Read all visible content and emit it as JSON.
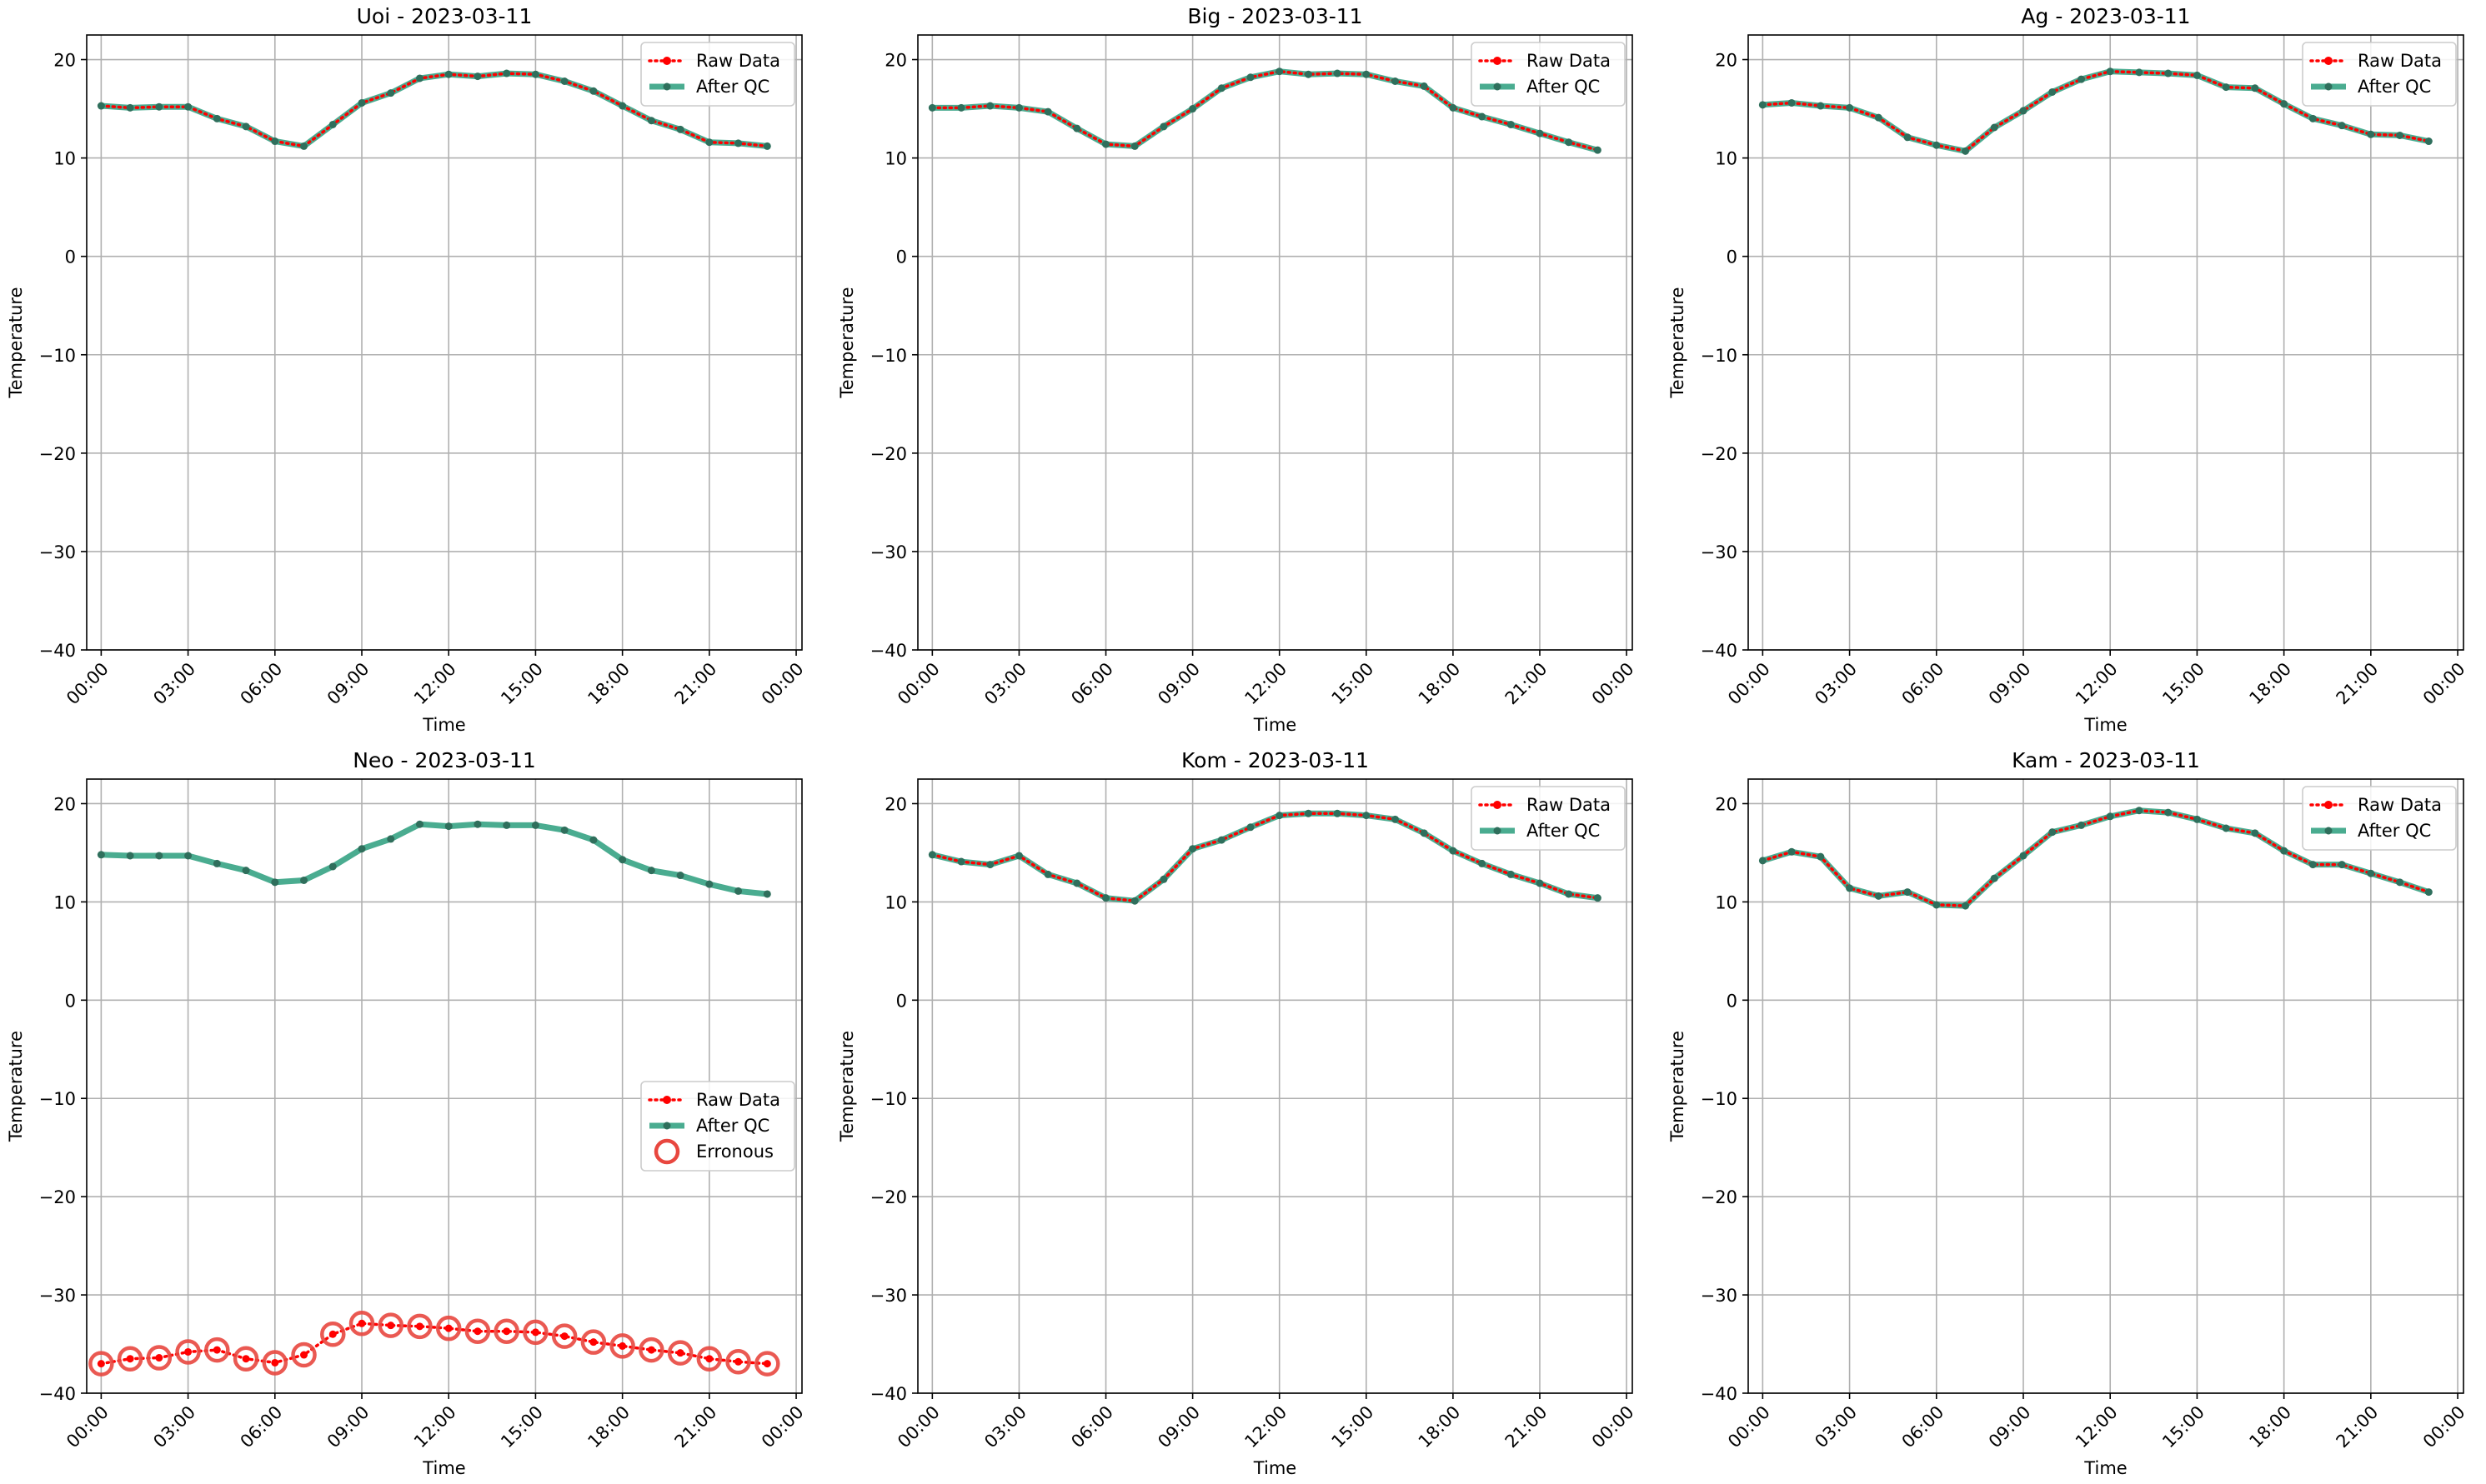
{
  "figure": {
    "layout": "2x3 grid of line charts",
    "colors": {
      "raw": "#ff0000",
      "qc": "#2a9d7c",
      "qc_marker": "#2f6f5c",
      "erroneous": "#e8473f",
      "grid": "#b0b0b0",
      "axis": "#000000"
    }
  },
  "chart_data": [
    {
      "type": "line",
      "title": "Uoi - 2023-03-11",
      "xlabel": "Time",
      "ylabel": "Temperature",
      "x_hours": [
        0,
        1,
        2,
        3,
        4,
        5,
        6,
        7,
        8,
        9,
        10,
        11,
        12,
        13,
        14,
        15,
        16,
        17,
        18,
        19,
        20,
        21,
        22,
        23
      ],
      "xlim_hours": [
        -0.5,
        24.2
      ],
      "xticks": [
        "00:00",
        "03:00",
        "06:00",
        "09:00",
        "12:00",
        "15:00",
        "18:00",
        "21:00",
        "00:00"
      ],
      "xtick_hours": [
        0,
        3,
        6,
        9,
        12,
        15,
        18,
        21,
        24
      ],
      "ylim": [
        -40,
        22.5
      ],
      "yticks": [
        20,
        10,
        0,
        -10,
        -20,
        -30,
        -40
      ],
      "ytick_labels": [
        "20",
        "10",
        "0",
        "−10",
        "−20",
        "−30",
        "−40"
      ],
      "grid": true,
      "legend_position": "upper-right",
      "legend": [
        "Raw Data",
        "After QC"
      ],
      "series": [
        {
          "name": "Raw Data",
          "style": "dotted-red-dots",
          "values": [
            15.3,
            15.1,
            15.2,
            15.2,
            14.0,
            13.2,
            11.7,
            11.2,
            13.4,
            15.6,
            16.6,
            18.1,
            18.5,
            18.3,
            18.6,
            18.5,
            17.8,
            16.8,
            15.3,
            13.8,
            12.9,
            11.6,
            11.5,
            11.2
          ]
        },
        {
          "name": "After QC",
          "style": "solid-green",
          "values": [
            15.3,
            15.1,
            15.2,
            15.2,
            14.0,
            13.2,
            11.7,
            11.2,
            13.4,
            15.6,
            16.6,
            18.1,
            18.5,
            18.3,
            18.6,
            18.5,
            17.8,
            16.8,
            15.3,
            13.8,
            12.9,
            11.6,
            11.5,
            11.2
          ]
        }
      ]
    },
    {
      "type": "line",
      "title": "Big - 2023-03-11",
      "xlabel": "Time",
      "ylabel": "Temperature",
      "x_hours": [
        0,
        1,
        2,
        3,
        4,
        5,
        6,
        7,
        8,
        9,
        10,
        11,
        12,
        13,
        14,
        15,
        16,
        17,
        18,
        19,
        20,
        21,
        22,
        23
      ],
      "xlim_hours": [
        -0.5,
        24.2
      ],
      "xticks": [
        "00:00",
        "03:00",
        "06:00",
        "09:00",
        "12:00",
        "15:00",
        "18:00",
        "21:00",
        "00:00"
      ],
      "xtick_hours": [
        0,
        3,
        6,
        9,
        12,
        15,
        18,
        21,
        24
      ],
      "ylim": [
        -40,
        22.5
      ],
      "yticks": [
        20,
        10,
        0,
        -10,
        -20,
        -30,
        -40
      ],
      "ytick_labels": [
        "20",
        "10",
        "0",
        "−10",
        "−20",
        "−30",
        "−40"
      ],
      "grid": true,
      "legend_position": "upper-right",
      "legend": [
        "Raw Data",
        "After QC"
      ],
      "series": [
        {
          "name": "Raw Data",
          "style": "dotted-red-dots",
          "values": [
            15.1,
            15.1,
            15.3,
            15.1,
            14.7,
            13.0,
            11.4,
            11.2,
            13.2,
            15.0,
            17.1,
            18.2,
            18.8,
            18.5,
            18.6,
            18.5,
            17.8,
            17.3,
            15.1,
            14.2,
            13.4,
            12.5,
            11.6,
            10.8
          ]
        },
        {
          "name": "After QC",
          "style": "solid-green",
          "values": [
            15.1,
            15.1,
            15.3,
            15.1,
            14.7,
            13.0,
            11.4,
            11.2,
            13.2,
            15.0,
            17.1,
            18.2,
            18.8,
            18.5,
            18.6,
            18.5,
            17.8,
            17.3,
            15.1,
            14.2,
            13.4,
            12.5,
            11.6,
            10.8
          ]
        }
      ]
    },
    {
      "type": "line",
      "title": "Ag - 2023-03-11",
      "xlabel": "Time",
      "ylabel": "Temperature",
      "x_hours": [
        0,
        1,
        2,
        3,
        4,
        5,
        6,
        7,
        8,
        9,
        10,
        11,
        12,
        13,
        14,
        15,
        16,
        17,
        18,
        19,
        20,
        21,
        22,
        23
      ],
      "xlim_hours": [
        -0.5,
        24.2
      ],
      "xticks": [
        "00:00",
        "03:00",
        "06:00",
        "09:00",
        "12:00",
        "15:00",
        "18:00",
        "21:00",
        "00:00"
      ],
      "xtick_hours": [
        0,
        3,
        6,
        9,
        12,
        15,
        18,
        21,
        24
      ],
      "ylim": [
        -40,
        22.5
      ],
      "yticks": [
        20,
        10,
        0,
        -10,
        -20,
        -30,
        -40
      ],
      "ytick_labels": [
        "20",
        "10",
        "0",
        "−10",
        "−20",
        "−30",
        "−40"
      ],
      "grid": true,
      "legend_position": "upper-right",
      "legend": [
        "Raw Data",
        "After QC"
      ],
      "series": [
        {
          "name": "Raw Data",
          "style": "dotted-red-dots",
          "values": [
            15.4,
            15.6,
            15.3,
            15.1,
            14.1,
            12.1,
            11.3,
            10.7,
            13.1,
            14.8,
            16.7,
            18.0,
            18.8,
            18.7,
            18.6,
            18.4,
            17.2,
            17.1,
            15.5,
            14.0,
            13.3,
            12.4,
            12.3,
            11.7
          ]
        },
        {
          "name": "After QC",
          "style": "solid-green",
          "values": [
            15.4,
            15.6,
            15.3,
            15.1,
            14.1,
            12.1,
            11.3,
            10.7,
            13.1,
            14.8,
            16.7,
            18.0,
            18.8,
            18.7,
            18.6,
            18.4,
            17.2,
            17.1,
            15.5,
            14.0,
            13.3,
            12.4,
            12.3,
            11.7
          ]
        }
      ]
    },
    {
      "type": "line",
      "title": "Neo - 2023-03-11",
      "xlabel": "Time",
      "ylabel": "Temperature",
      "x_hours": [
        0,
        1,
        2,
        3,
        4,
        5,
        6,
        7,
        8,
        9,
        10,
        11,
        12,
        13,
        14,
        15,
        16,
        17,
        18,
        19,
        20,
        21,
        22,
        23
      ],
      "xlim_hours": [
        -0.5,
        24.2
      ],
      "xticks": [
        "00:00",
        "03:00",
        "06:00",
        "09:00",
        "12:00",
        "15:00",
        "18:00",
        "21:00",
        "00:00"
      ],
      "xtick_hours": [
        0,
        3,
        6,
        9,
        12,
        15,
        18,
        21,
        24
      ],
      "ylim": [
        -40,
        22.5
      ],
      "yticks": [
        20,
        10,
        0,
        -10,
        -20,
        -30,
        -40
      ],
      "ytick_labels": [
        "20",
        "10",
        "0",
        "−10",
        "−20",
        "−30",
        "−40"
      ],
      "grid": true,
      "legend_position": "center-right",
      "legend": [
        "Raw Data",
        "After QC",
        "Erronous"
      ],
      "series": [
        {
          "name": "Raw Data",
          "style": "dotted-red-dots",
          "values": [
            -37.0,
            -36.5,
            -36.4,
            -35.8,
            -35.6,
            -36.5,
            -36.9,
            -36.1,
            -34.0,
            -32.9,
            -33.1,
            -33.2,
            -33.4,
            -33.7,
            -33.7,
            -33.8,
            -34.2,
            -34.8,
            -35.2,
            -35.6,
            -35.9,
            -36.5,
            -36.8,
            -37.0
          ]
        },
        {
          "name": "After QC",
          "style": "solid-green",
          "values": [
            14.8,
            14.7,
            14.7,
            14.7,
            13.9,
            13.2,
            12.0,
            12.2,
            13.6,
            15.4,
            16.4,
            17.9,
            17.7,
            17.9,
            17.8,
            17.8,
            17.3,
            16.3,
            14.3,
            13.2,
            12.7,
            11.8,
            11.1,
            10.8
          ]
        },
        {
          "name": "Erronous",
          "style": "open-red-circles",
          "values": [
            -37.0,
            -36.5,
            -36.4,
            -35.8,
            -35.6,
            -36.5,
            -36.9,
            -36.1,
            -34.0,
            -32.9,
            -33.1,
            -33.2,
            -33.4,
            -33.7,
            -33.7,
            -33.8,
            -34.2,
            -34.8,
            -35.2,
            -35.6,
            -35.9,
            -36.5,
            -36.8,
            -37.0
          ]
        }
      ]
    },
    {
      "type": "line",
      "title": "Kom - 2023-03-11",
      "xlabel": "Time",
      "ylabel": "Temperature",
      "x_hours": [
        0,
        1,
        2,
        3,
        4,
        5,
        6,
        7,
        8,
        9,
        10,
        11,
        12,
        13,
        14,
        15,
        16,
        17,
        18,
        19,
        20,
        21,
        22,
        23
      ],
      "xlim_hours": [
        -0.5,
        24.2
      ],
      "xticks": [
        "00:00",
        "03:00",
        "06:00",
        "09:00",
        "12:00",
        "15:00",
        "18:00",
        "21:00",
        "00:00"
      ],
      "xtick_hours": [
        0,
        3,
        6,
        9,
        12,
        15,
        18,
        21,
        24
      ],
      "ylim": [
        -40,
        22.5
      ],
      "yticks": [
        20,
        10,
        0,
        -10,
        -20,
        -30,
        -40
      ],
      "ytick_labels": [
        "20",
        "10",
        "0",
        "−10",
        "−20",
        "−30",
        "−40"
      ],
      "grid": true,
      "legend_position": "upper-right",
      "legend": [
        "Raw Data",
        "After QC"
      ],
      "series": [
        {
          "name": "Raw Data",
          "style": "dotted-red-dots",
          "values": [
            14.8,
            14.1,
            13.8,
            14.7,
            12.8,
            11.9,
            10.4,
            10.1,
            12.3,
            15.4,
            16.3,
            17.6,
            18.8,
            19.0,
            19.0,
            18.8,
            18.4,
            17.0,
            15.2,
            13.9,
            12.8,
            11.9,
            10.8,
            10.4
          ]
        },
        {
          "name": "After QC",
          "style": "solid-green",
          "values": [
            14.8,
            14.1,
            13.8,
            14.7,
            12.8,
            11.9,
            10.4,
            10.1,
            12.3,
            15.4,
            16.3,
            17.6,
            18.8,
            19.0,
            19.0,
            18.8,
            18.4,
            17.0,
            15.2,
            13.9,
            12.8,
            11.9,
            10.8,
            10.4
          ]
        }
      ]
    },
    {
      "type": "line",
      "title": "Kam - 2023-03-11",
      "xlabel": "Time",
      "ylabel": "Temperature",
      "x_hours": [
        0,
        1,
        2,
        3,
        4,
        5,
        6,
        7,
        8,
        9,
        10,
        11,
        12,
        13,
        14,
        15,
        16,
        17,
        18,
        19,
        20,
        21,
        22,
        23
      ],
      "xlim_hours": [
        -0.5,
        24.2
      ],
      "xticks": [
        "00:00",
        "03:00",
        "06:00",
        "09:00",
        "12:00",
        "15:00",
        "18:00",
        "21:00",
        "00:00"
      ],
      "xtick_hours": [
        0,
        3,
        6,
        9,
        12,
        15,
        18,
        21,
        24
      ],
      "ylim": [
        -40,
        22.5
      ],
      "yticks": [
        20,
        10,
        0,
        -10,
        -20,
        -30,
        -40
      ],
      "ytick_labels": [
        "20",
        "10",
        "0",
        "−10",
        "−20",
        "−30",
        "−40"
      ],
      "grid": true,
      "legend_position": "upper-right",
      "legend": [
        "Raw Data",
        "After QC"
      ],
      "series": [
        {
          "name": "Raw Data",
          "style": "dotted-red-dots",
          "values": [
            14.2,
            15.1,
            14.6,
            11.4,
            10.6,
            11.0,
            9.7,
            9.6,
            12.4,
            14.7,
            17.1,
            17.8,
            18.7,
            19.3,
            19.1,
            18.4,
            17.5,
            17.0,
            15.2,
            13.8,
            13.8,
            12.9,
            12.0,
            11.0
          ]
        },
        {
          "name": "After QC",
          "style": "solid-green",
          "values": [
            14.2,
            15.1,
            14.6,
            11.4,
            10.6,
            11.0,
            9.7,
            9.6,
            12.4,
            14.7,
            17.1,
            17.8,
            18.7,
            19.3,
            19.1,
            18.4,
            17.5,
            17.0,
            15.2,
            13.8,
            13.8,
            12.9,
            12.0,
            11.0
          ]
        }
      ]
    }
  ]
}
